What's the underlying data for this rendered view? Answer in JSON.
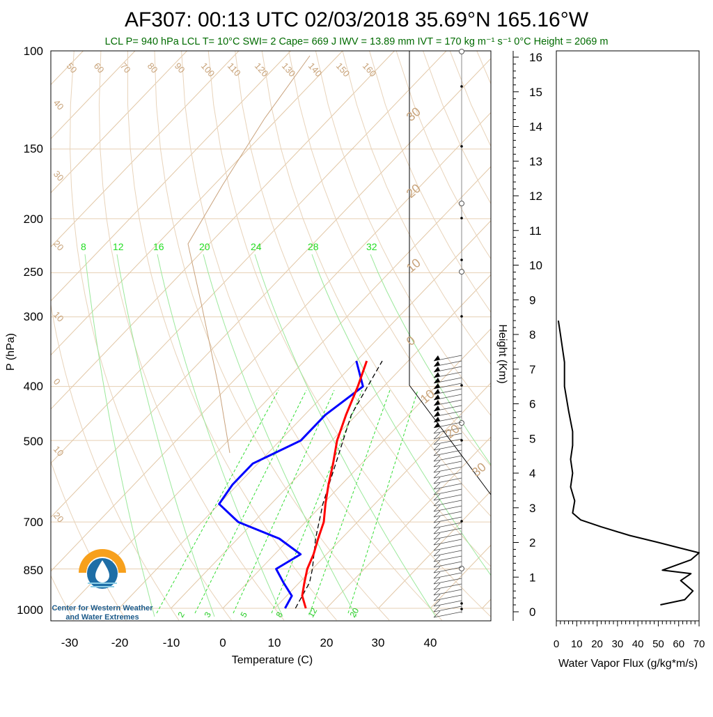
{
  "title": "AF307: 00:13 UTC 02/03/2018  35.69°N 165.16°W",
  "subtitle": "LCL P= 940 hPa  LCL T= 10°C  SWI= 2  Cape= 669 J  IWV = 13.89 mm  IVT = 170 kg m⁻¹ s⁻¹  0°C Height = 2069 m",
  "skewt": {
    "ylabel": "P (hPa)",
    "xlabel": "Temperature (C)",
    "pressure_ticks": [
      "100",
      "150",
      "200",
      "250",
      "300",
      "400",
      "500",
      "700",
      "850",
      "1000"
    ],
    "temp_ticks": [
      "-30",
      "-20",
      "-10",
      "0",
      "10",
      "20",
      "30",
      "40"
    ],
    "theta_labels": [
      "50",
      "60",
      "70",
      "80",
      "90",
      "100",
      "110",
      "120",
      "130",
      "140",
      "150",
      "160"
    ],
    "temp_line_labels": [
      "40",
      "30",
      "20",
      "10",
      "0",
      "10",
      "20",
      "30",
      "20",
      "10",
      "0",
      "10",
      "20",
      "30"
    ],
    "mixing_top_labels": [
      "8",
      "12",
      "16",
      "20",
      "24",
      "28",
      "32"
    ],
    "mixing_bottom_labels": [
      "2",
      "3",
      "5",
      "8",
      "12",
      "20"
    ]
  },
  "height_axis": {
    "label": "Height (Km)",
    "ticks": [
      "0",
      "1",
      "2",
      "3",
      "4",
      "5",
      "6",
      "7",
      "8",
      "9",
      "10",
      "11",
      "12",
      "13",
      "14",
      "15",
      "16"
    ]
  },
  "flux_panel": {
    "xlabel": "Water Vapor Flux (g/kg*m/s)",
    "ticks": [
      "0",
      "10",
      "20",
      "30",
      "40",
      "50",
      "60",
      "70"
    ]
  },
  "logo": {
    "line1": "Center for Western Weather",
    "line2": "and Water Extremes"
  },
  "colors": {
    "temperature": "#ff0000",
    "dewpoint": "#0000ff",
    "parcel": "#000000",
    "isotherm": "#d4b48c",
    "mixing_ratio": "#33dd33",
    "flux": "#000000"
  },
  "chart_data": [
    {
      "type": "line",
      "name": "skew-T sounding",
      "y_scale": "log-pressure",
      "ylim_hPa": [
        1000,
        100
      ],
      "xlim_C": [
        -34,
        52
      ],
      "series": [
        {
          "name": "temperature",
          "points": [
            [
              1000,
              16
            ],
            [
              950,
              13
            ],
            [
              900,
              11
            ],
            [
              850,
              9
            ],
            [
              800,
              7.5
            ],
            [
              750,
              5.5
            ],
            [
              700,
              3.5
            ],
            [
              650,
              0.5
            ],
            [
              600,
              -2.5
            ],
            [
              550,
              -5.5
            ],
            [
              500,
              -9
            ],
            [
              450,
              -12
            ],
            [
              400,
              -15
            ],
            [
              360,
              -18
            ]
          ]
        },
        {
          "name": "dewpoint",
          "points": [
            [
              1000,
              12
            ],
            [
              950,
              11
            ],
            [
              900,
              7
            ],
            [
              850,
              3
            ],
            [
              800,
              5
            ],
            [
              750,
              -2
            ],
            [
              700,
              -13
            ],
            [
              650,
              -20
            ],
            [
              600,
              -21
            ],
            [
              550,
              -21
            ],
            [
              500,
              -16
            ],
            [
              450,
              -16
            ],
            [
              400,
              -14
            ],
            [
              360,
              -20
            ]
          ]
        },
        {
          "name": "parcel",
          "points": [
            [
              1000,
              14
            ],
            [
              950,
              13
            ],
            [
              900,
              12
            ],
            [
              850,
              10
            ],
            [
              750,
              5
            ],
            [
              650,
              0
            ],
            [
              550,
              -5
            ],
            [
              450,
              -11
            ],
            [
              360,
              -15
            ]
          ]
        }
      ]
    },
    {
      "type": "line",
      "name": "water vapor flux profile",
      "xlim": [
        0,
        70
      ],
      "ylim_km": [
        0,
        16
      ],
      "series": [
        {
          "name": "water vapor flux",
          "points": [
            [
              51,
              0.2
            ],
            [
              63,
              0.35
            ],
            [
              67,
              0.6
            ],
            [
              61,
              0.9
            ],
            [
              66,
              1.1
            ],
            [
              52,
              1.2
            ],
            [
              66,
              1.5
            ],
            [
              70,
              1.7
            ],
            [
              60,
              1.85
            ],
            [
              50,
              2.0
            ],
            [
              36,
              2.2
            ],
            [
              22,
              2.45
            ],
            [
              12,
              2.65
            ],
            [
              8,
              2.85
            ],
            [
              9,
              3.2
            ],
            [
              7,
              3.6
            ],
            [
              8,
              4.0
            ],
            [
              7,
              4.4
            ],
            [
              8,
              4.8
            ],
            [
              8,
              5.2
            ],
            [
              6,
              5.8
            ],
            [
              4,
              6.5
            ],
            [
              4,
              7.2
            ],
            [
              2,
              8.0
            ],
            [
              1,
              8.4
            ]
          ]
        }
      ]
    }
  ]
}
